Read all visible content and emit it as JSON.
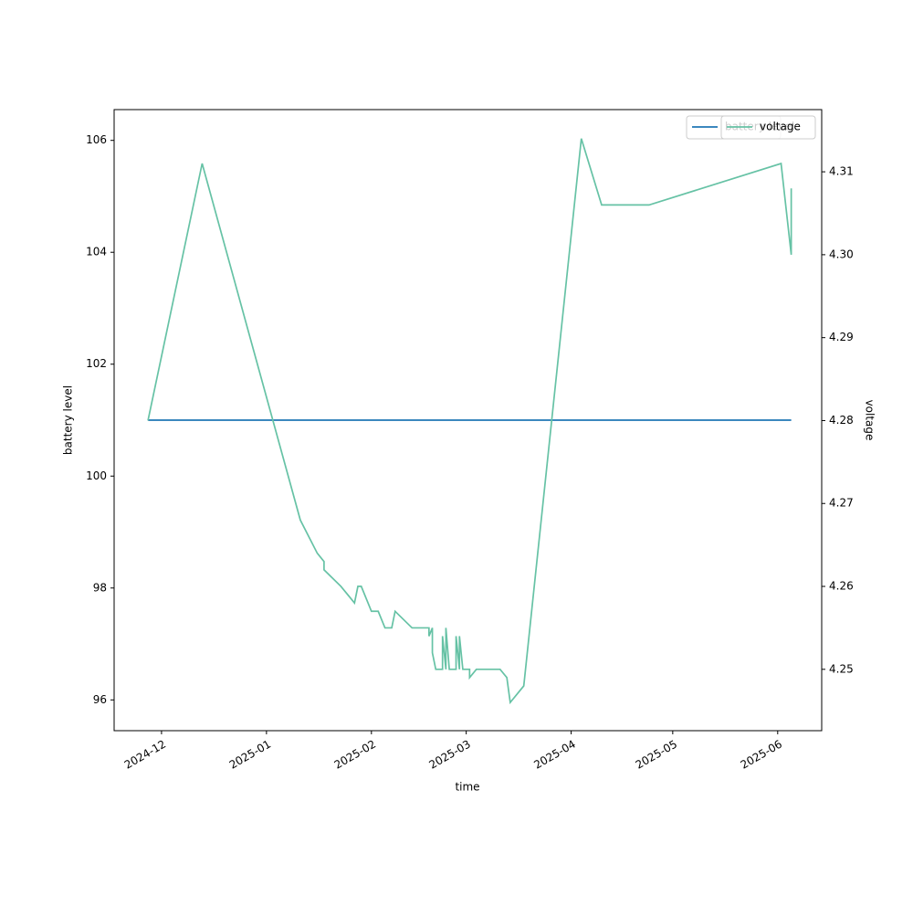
{
  "chart_data": {
    "type": "line",
    "xlabel": "time",
    "ylabel": "battery level",
    "y2label": "voltage",
    "xlim": [
      "2024-11-17",
      "2025-06-14"
    ],
    "xticks": [
      {
        "value": "2024-12-01",
        "label": "2024-12"
      },
      {
        "value": "2025-01-01",
        "label": "2025-01"
      },
      {
        "value": "2025-02-01",
        "label": "2025-02"
      },
      {
        "value": "2025-03-01",
        "label": "2025-03"
      },
      {
        "value": "2025-04-01",
        "label": "2025-04"
      },
      {
        "value": "2025-05-01",
        "label": "2025-05"
      },
      {
        "value": "2025-06-01",
        "label": "2025-06"
      }
    ],
    "ylim": [
      95.45,
      106.55
    ],
    "yticks": [
      96,
      98,
      100,
      102,
      104,
      106
    ],
    "y2lim": [
      4.2426,
      4.3175
    ],
    "y2ticks": [
      {
        "value": 4.25,
        "label": "4.25"
      },
      {
        "value": 4.26,
        "label": "4.26"
      },
      {
        "value": 4.27,
        "label": "4.27"
      },
      {
        "value": 4.28,
        "label": "4.28"
      },
      {
        "value": 4.29,
        "label": "4.29"
      },
      {
        "value": 4.3,
        "label": "4.30"
      },
      {
        "value": 4.31,
        "label": "4.31"
      }
    ],
    "legend": "upper right",
    "series": [
      {
        "name": "battery level",
        "color": "#1f77b4",
        "x": [
          "2024-11-27",
          "2025-06-05"
        ],
        "values": [
          101,
          101
        ]
      },
      {
        "name": "voltage",
        "color": "#66c2a5",
        "axis": "y2",
        "x": [
          "2024-11-27",
          "2024-12-13",
          "2025-01-11",
          "2025-01-16",
          "2025-01-18",
          "2025-01-18",
          "2025-01-23",
          "2025-01-27",
          "2025-01-28",
          "2025-01-29",
          "2025-02-01",
          "2025-02-03",
          "2025-02-05",
          "2025-02-07",
          "2025-02-08",
          "2025-02-13",
          "2025-02-18",
          "2025-02-18",
          "2025-02-19",
          "2025-02-19",
          "2025-02-20",
          "2025-02-22",
          "2025-02-22",
          "2025-02-23",
          "2025-02-23",
          "2025-02-24",
          "2025-02-26",
          "2025-02-26",
          "2025-02-27",
          "2025-02-27",
          "2025-02-28",
          "2025-03-02",
          "2025-03-02",
          "2025-03-04",
          "2025-03-11",
          "2025-03-13",
          "2025-03-14",
          "2025-03-18",
          "2025-04-04",
          "2025-04-10",
          "2025-04-24",
          "2025-06-02",
          "2025-06-05",
          "2025-06-05"
        ],
        "values": [
          4.28,
          4.311,
          4.268,
          4.264,
          4.263,
          4.262,
          4.26,
          4.258,
          4.26,
          4.26,
          4.257,
          4.257,
          4.255,
          4.255,
          4.257,
          4.255,
          4.255,
          4.254,
          4.255,
          4.252,
          4.25,
          4.25,
          4.254,
          4.25,
          4.255,
          4.25,
          4.25,
          4.254,
          4.25,
          4.254,
          4.25,
          4.25,
          4.249,
          4.25,
          4.25,
          4.249,
          4.246,
          4.248,
          4.314,
          4.306,
          4.306,
          4.311,
          4.3,
          4.308
        ]
      }
    ]
  }
}
